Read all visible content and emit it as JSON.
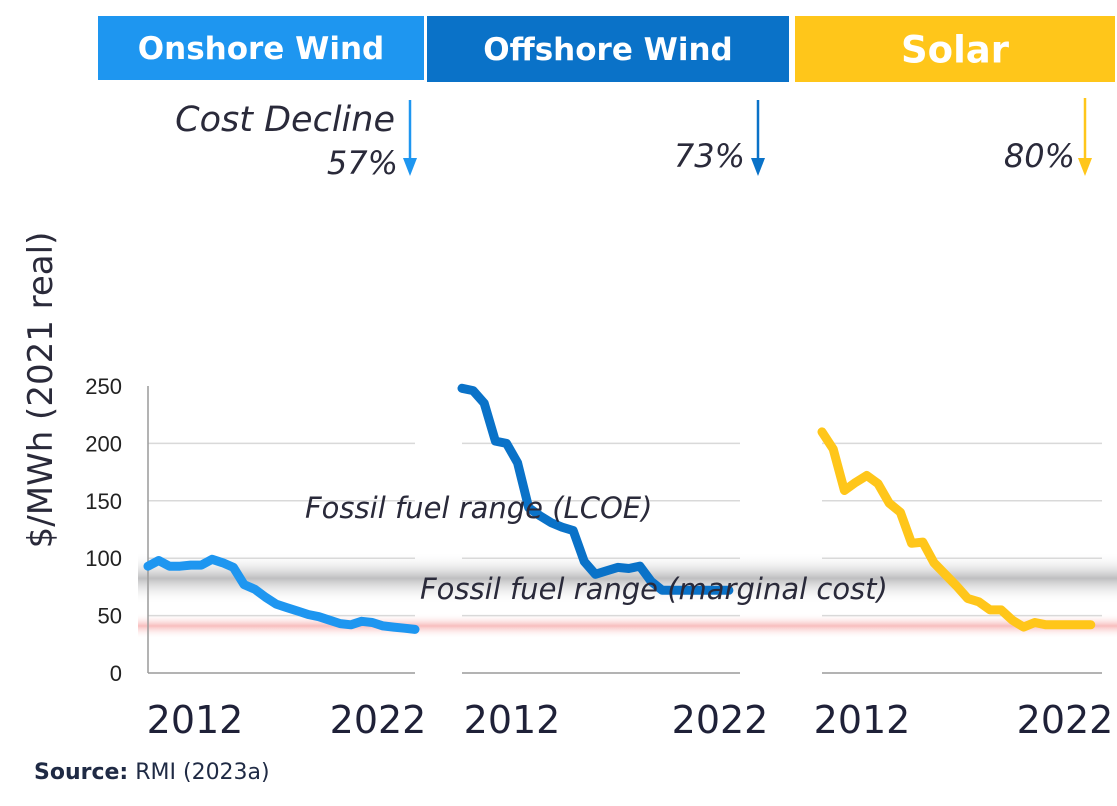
{
  "chart_data": {
    "type": "line",
    "ylabel": "$/MWh (2021 real)",
    "ylim": [
      0,
      250
    ],
    "yticks": [
      "0",
      "50",
      "100",
      "150",
      "200",
      "250"
    ],
    "grid": "horizontal",
    "panels": [
      {
        "title": "Onshore Wind",
        "color": "#1e96f0",
        "header_color": "#1e96f0",
        "xticks": [
          "2012",
          "2022"
        ],
        "decline_label": "Cost Decline",
        "decline_pct": "57%",
        "series": {
          "x": [
            2010,
            2010.5,
            2011,
            2011.5,
            2012,
            2012.5,
            2013,
            2013.5,
            2014,
            2014.5,
            2015,
            2015.5,
            2016,
            2016.5,
            2017,
            2017.5,
            2018,
            2018.5,
            2019,
            2019.5,
            2020,
            2020.5,
            2021,
            2021.5,
            2022,
            2022.5
          ],
          "y": [
            93,
            98,
            93,
            93,
            94,
            94,
            99,
            96,
            92,
            77,
            73,
            66,
            60,
            57,
            54,
            51,
            49,
            46,
            43,
            42,
            45,
            44,
            41,
            40,
            39,
            38
          ]
        }
      },
      {
        "title": "Offshore Wind",
        "color": "#0a72c8",
        "header_color": "#0a72c8",
        "xticks": [
          "2012",
          "2022"
        ],
        "decline_pct": "73%",
        "series": {
          "x": [
            2010,
            2010.5,
            2011,
            2011.5,
            2012,
            2012.5,
            2013,
            2013.5,
            2014,
            2014.5,
            2015,
            2015.5,
            2016,
            2016.5,
            2017,
            2017.5,
            2018,
            2018.5,
            2019,
            2019.5,
            2020,
            2020.5,
            2021,
            2021.5,
            2022
          ],
          "y": [
            248,
            246,
            235,
            202,
            200,
            183,
            144,
            137,
            131,
            127,
            124,
            97,
            86,
            89,
            92,
            91,
            93,
            80,
            72,
            72,
            72,
            72,
            72,
            72,
            72
          ]
        }
      },
      {
        "title": "Solar",
        "color": "#ffc61a",
        "header_color": "#ffc61a",
        "xticks": [
          "2012",
          "2022"
        ],
        "decline_pct": "80%",
        "series": {
          "x": [
            2010,
            2010.5,
            2011,
            2011.5,
            2012,
            2012.5,
            2013,
            2013.5,
            2014,
            2014.5,
            2015,
            2015.5,
            2016,
            2016.5,
            2017,
            2017.5,
            2018,
            2018.5,
            2019,
            2019.5,
            2020,
            2020.5,
            2021,
            2021.5,
            2022
          ],
          "y": [
            210,
            195,
            159,
            166,
            172,
            165,
            148,
            140,
            113,
            114,
            96,
            86,
            76,
            65,
            62,
            55,
            55,
            46,
            40,
            44,
            42,
            42,
            42,
            42,
            42
          ]
        }
      }
    ],
    "bands": [
      {
        "label": "Fossil fuel range (LCOE)",
        "low": 60,
        "high": 105,
        "color": "#a9a9ab"
      },
      {
        "label": "Fossil fuel range (marginal cost)",
        "low": 30,
        "high": 52,
        "color": "#f7b6b6"
      }
    ]
  },
  "source": {
    "label": "Source:",
    "text": "RMI (2023a)"
  }
}
